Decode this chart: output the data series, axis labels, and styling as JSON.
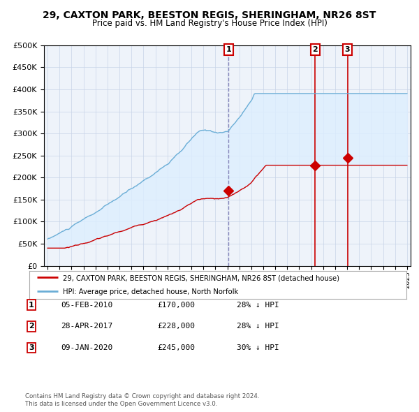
{
  "title": "29, CAXTON PARK, BEESTON REGIS, SHERINGHAM, NR26 8ST",
  "subtitle": "Price paid vs. HM Land Registry's House Price Index (HPI)",
  "legend_line1": "29, CAXTON PARK, BEESTON REGIS, SHERINGHAM, NR26 8ST (detached house)",
  "legend_line2": "HPI: Average price, detached house, North Norfolk",
  "footer1": "Contains HM Land Registry data © Crown copyright and database right 2024.",
  "footer2": "This data is licensed under the Open Government Licence v3.0.",
  "transactions": [
    {
      "num": "1",
      "date": "05-FEB-2010",
      "price": "£170,000",
      "hpi": "28% ↓ HPI",
      "year": 2010.1
    },
    {
      "num": "2",
      "date": "28-APR-2017",
      "price": "£228,000",
      "hpi": "28% ↓ HPI",
      "year": 2017.33
    },
    {
      "num": "3",
      "date": "09-JAN-2020",
      "price": "£245,000",
      "hpi": "30% ↓ HPI",
      "year": 2020.03
    }
  ],
  "hpi_color": "#6baed6",
  "price_color": "#cc0000",
  "vline1_color": "#8888bb",
  "vline23_color": "#cc0000",
  "fill_color": "#ddeeff",
  "ylim": [
    0,
    500000
  ],
  "yticks": [
    0,
    50000,
    100000,
    150000,
    200000,
    250000,
    300000,
    350000,
    400000,
    450000,
    500000
  ],
  "xlim": [
    1994.7,
    2025.3
  ],
  "background_color": "#ffffff",
  "plot_bg": "#eef3fa"
}
